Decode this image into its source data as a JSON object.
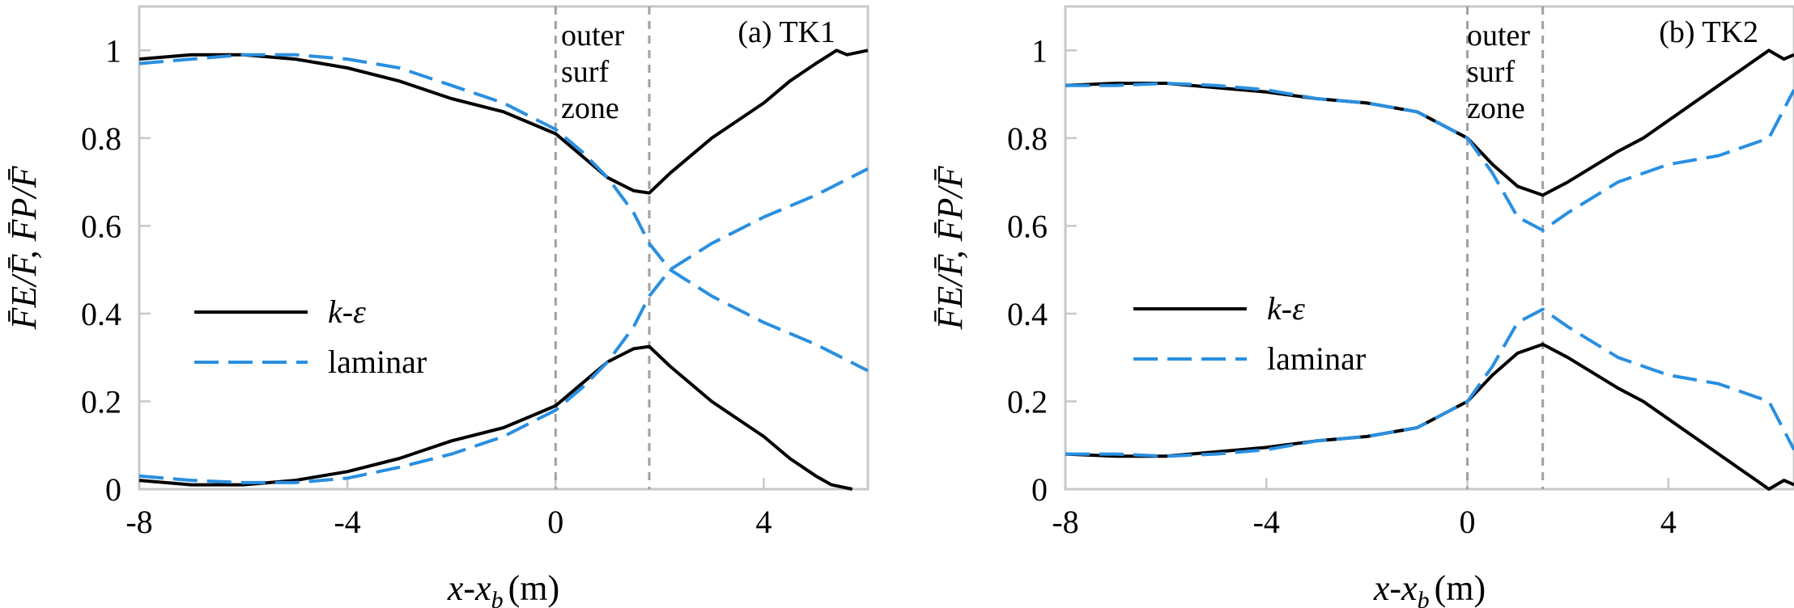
{
  "chart_data": [
    {
      "type": "line",
      "panel_title": "(a) TK1",
      "xlabel_main": "x-x",
      "xlabel_sub": "b",
      "xlabel_unit": "(m)",
      "ylabel": "F̄E/F̄, F̄P/F̄",
      "xlim": [
        -8,
        6
      ],
      "ylim": [
        0,
        1.1
      ],
      "xticks": [
        -8,
        -4,
        0,
        4
      ],
      "yticks": [
        0,
        0.2,
        0.4,
        0.6,
        0.8,
        1
      ],
      "ytick_labels": [
        "0",
        "0.2",
        "0.4",
        "0.6",
        "0.8",
        "1"
      ],
      "vlines": [
        0,
        1.8
      ],
      "zone_label": [
        "outer",
        "surf",
        "zone"
      ],
      "legend": [
        "k-ε",
        "laminar"
      ],
      "series": [
        {
          "name": "k-ε",
          "part": "upper",
          "x": [
            -8,
            -7,
            -6,
            -5,
            -4,
            -3,
            -2,
            -1,
            0,
            0.5,
            1,
            1.5,
            1.8,
            2.2,
            3,
            4,
            4.5,
            5,
            5.4,
            5.6,
            6
          ],
          "y": [
            0.98,
            0.99,
            0.99,
            0.98,
            0.96,
            0.93,
            0.89,
            0.86,
            0.81,
            0.76,
            0.71,
            0.68,
            0.675,
            0.72,
            0.8,
            0.88,
            0.93,
            0.97,
            1.0,
            0.99,
            1.0
          ]
        },
        {
          "name": "k-ε",
          "part": "lower",
          "x": [
            -8,
            -7,
            -6,
            -5,
            -4,
            -3,
            -2,
            -1,
            0,
            0.5,
            1,
            1.5,
            1.8,
            2.2,
            3,
            4,
            4.5,
            5,
            5.3,
            5.5,
            5.7
          ],
          "y": [
            0.02,
            0.01,
            0.01,
            0.02,
            0.04,
            0.07,
            0.11,
            0.14,
            0.19,
            0.24,
            0.29,
            0.32,
            0.325,
            0.28,
            0.2,
            0.12,
            0.07,
            0.03,
            0.01,
            0.005,
            0.0
          ]
        },
        {
          "name": "laminar",
          "part": "upper",
          "x": [
            -8,
            -7,
            -6,
            -5,
            -4,
            -3,
            -2,
            -1,
            0,
            0.5,
            1,
            1.5,
            1.8,
            2.2,
            3,
            4,
            5,
            6
          ],
          "y": [
            0.97,
            0.98,
            0.99,
            0.99,
            0.98,
            0.96,
            0.92,
            0.88,
            0.82,
            0.77,
            0.71,
            0.63,
            0.56,
            0.5,
            0.44,
            0.38,
            0.33,
            0.27
          ]
        },
        {
          "name": "laminar",
          "part": "lower",
          "x": [
            -8,
            -7,
            -6,
            -5,
            -4,
            -3,
            -2,
            -1,
            0,
            0.5,
            1,
            1.5,
            1.8,
            2.2,
            3,
            4,
            5,
            6
          ],
          "y": [
            0.03,
            0.02,
            0.015,
            0.015,
            0.025,
            0.05,
            0.08,
            0.12,
            0.18,
            0.23,
            0.29,
            0.37,
            0.44,
            0.5,
            0.56,
            0.62,
            0.67,
            0.73
          ]
        }
      ]
    },
    {
      "type": "line",
      "panel_title": "(b) TK2",
      "xlabel_main": "x-x",
      "xlabel_sub": "b",
      "xlabel_unit": "(m)",
      "ylabel": "F̄E/F̄, F̄P/F̄",
      "xlim": [
        -8,
        6.5
      ],
      "ylim": [
        0,
        1.1
      ],
      "xticks": [
        -8,
        -4,
        0,
        4
      ],
      "yticks": [
        0,
        0.2,
        0.4,
        0.6,
        0.8,
        1
      ],
      "ytick_labels": [
        "0",
        "0.2",
        "0.4",
        "0.6",
        "0.8",
        "1"
      ],
      "vlines": [
        0,
        1.5
      ],
      "zone_label": [
        "outer",
        "surf",
        "zone"
      ],
      "legend": [
        "k-ε",
        "laminar"
      ],
      "series": [
        {
          "name": "k-ε",
          "part": "upper",
          "x": [
            -8,
            -7,
            -6,
            -5,
            -4,
            -3,
            -2,
            -1,
            0,
            0.5,
            1,
            1.5,
            2,
            3,
            3.5,
            4,
            5,
            6,
            6.3,
            6.5
          ],
          "y": [
            0.92,
            0.925,
            0.925,
            0.915,
            0.905,
            0.89,
            0.88,
            0.86,
            0.8,
            0.74,
            0.69,
            0.67,
            0.7,
            0.77,
            0.8,
            0.84,
            0.92,
            1.0,
            0.98,
            0.99
          ]
        },
        {
          "name": "k-ε",
          "part": "lower",
          "x": [
            -8,
            -7,
            -6,
            -5,
            -4,
            -3,
            -2,
            -1,
            0,
            0.5,
            1,
            1.5,
            2,
            3,
            3.5,
            4,
            5,
            6,
            6.3,
            6.5
          ],
          "y": [
            0.08,
            0.075,
            0.075,
            0.085,
            0.095,
            0.11,
            0.12,
            0.14,
            0.2,
            0.26,
            0.31,
            0.33,
            0.3,
            0.23,
            0.2,
            0.16,
            0.08,
            0.0,
            0.02,
            0.01
          ]
        },
        {
          "name": "laminar",
          "part": "upper",
          "x": [
            -8,
            -7,
            -6,
            -5,
            -4,
            -3,
            -2,
            -1,
            0,
            0.5,
            1,
            1.5,
            2,
            3,
            4,
            5,
            6,
            6.5
          ],
          "y": [
            0.92,
            0.92,
            0.925,
            0.92,
            0.91,
            0.89,
            0.88,
            0.86,
            0.8,
            0.72,
            0.62,
            0.59,
            0.63,
            0.7,
            0.74,
            0.76,
            0.8,
            0.91
          ]
        },
        {
          "name": "laminar",
          "part": "lower",
          "x": [
            -8,
            -7,
            -6,
            -5,
            -4,
            -3,
            -2,
            -1,
            0,
            0.5,
            1,
            1.5,
            2,
            3,
            4,
            5,
            6,
            6.5
          ],
          "y": [
            0.08,
            0.08,
            0.075,
            0.08,
            0.09,
            0.11,
            0.12,
            0.14,
            0.2,
            0.28,
            0.38,
            0.41,
            0.37,
            0.3,
            0.26,
            0.24,
            0.2,
            0.09
          ]
        }
      ]
    }
  ]
}
